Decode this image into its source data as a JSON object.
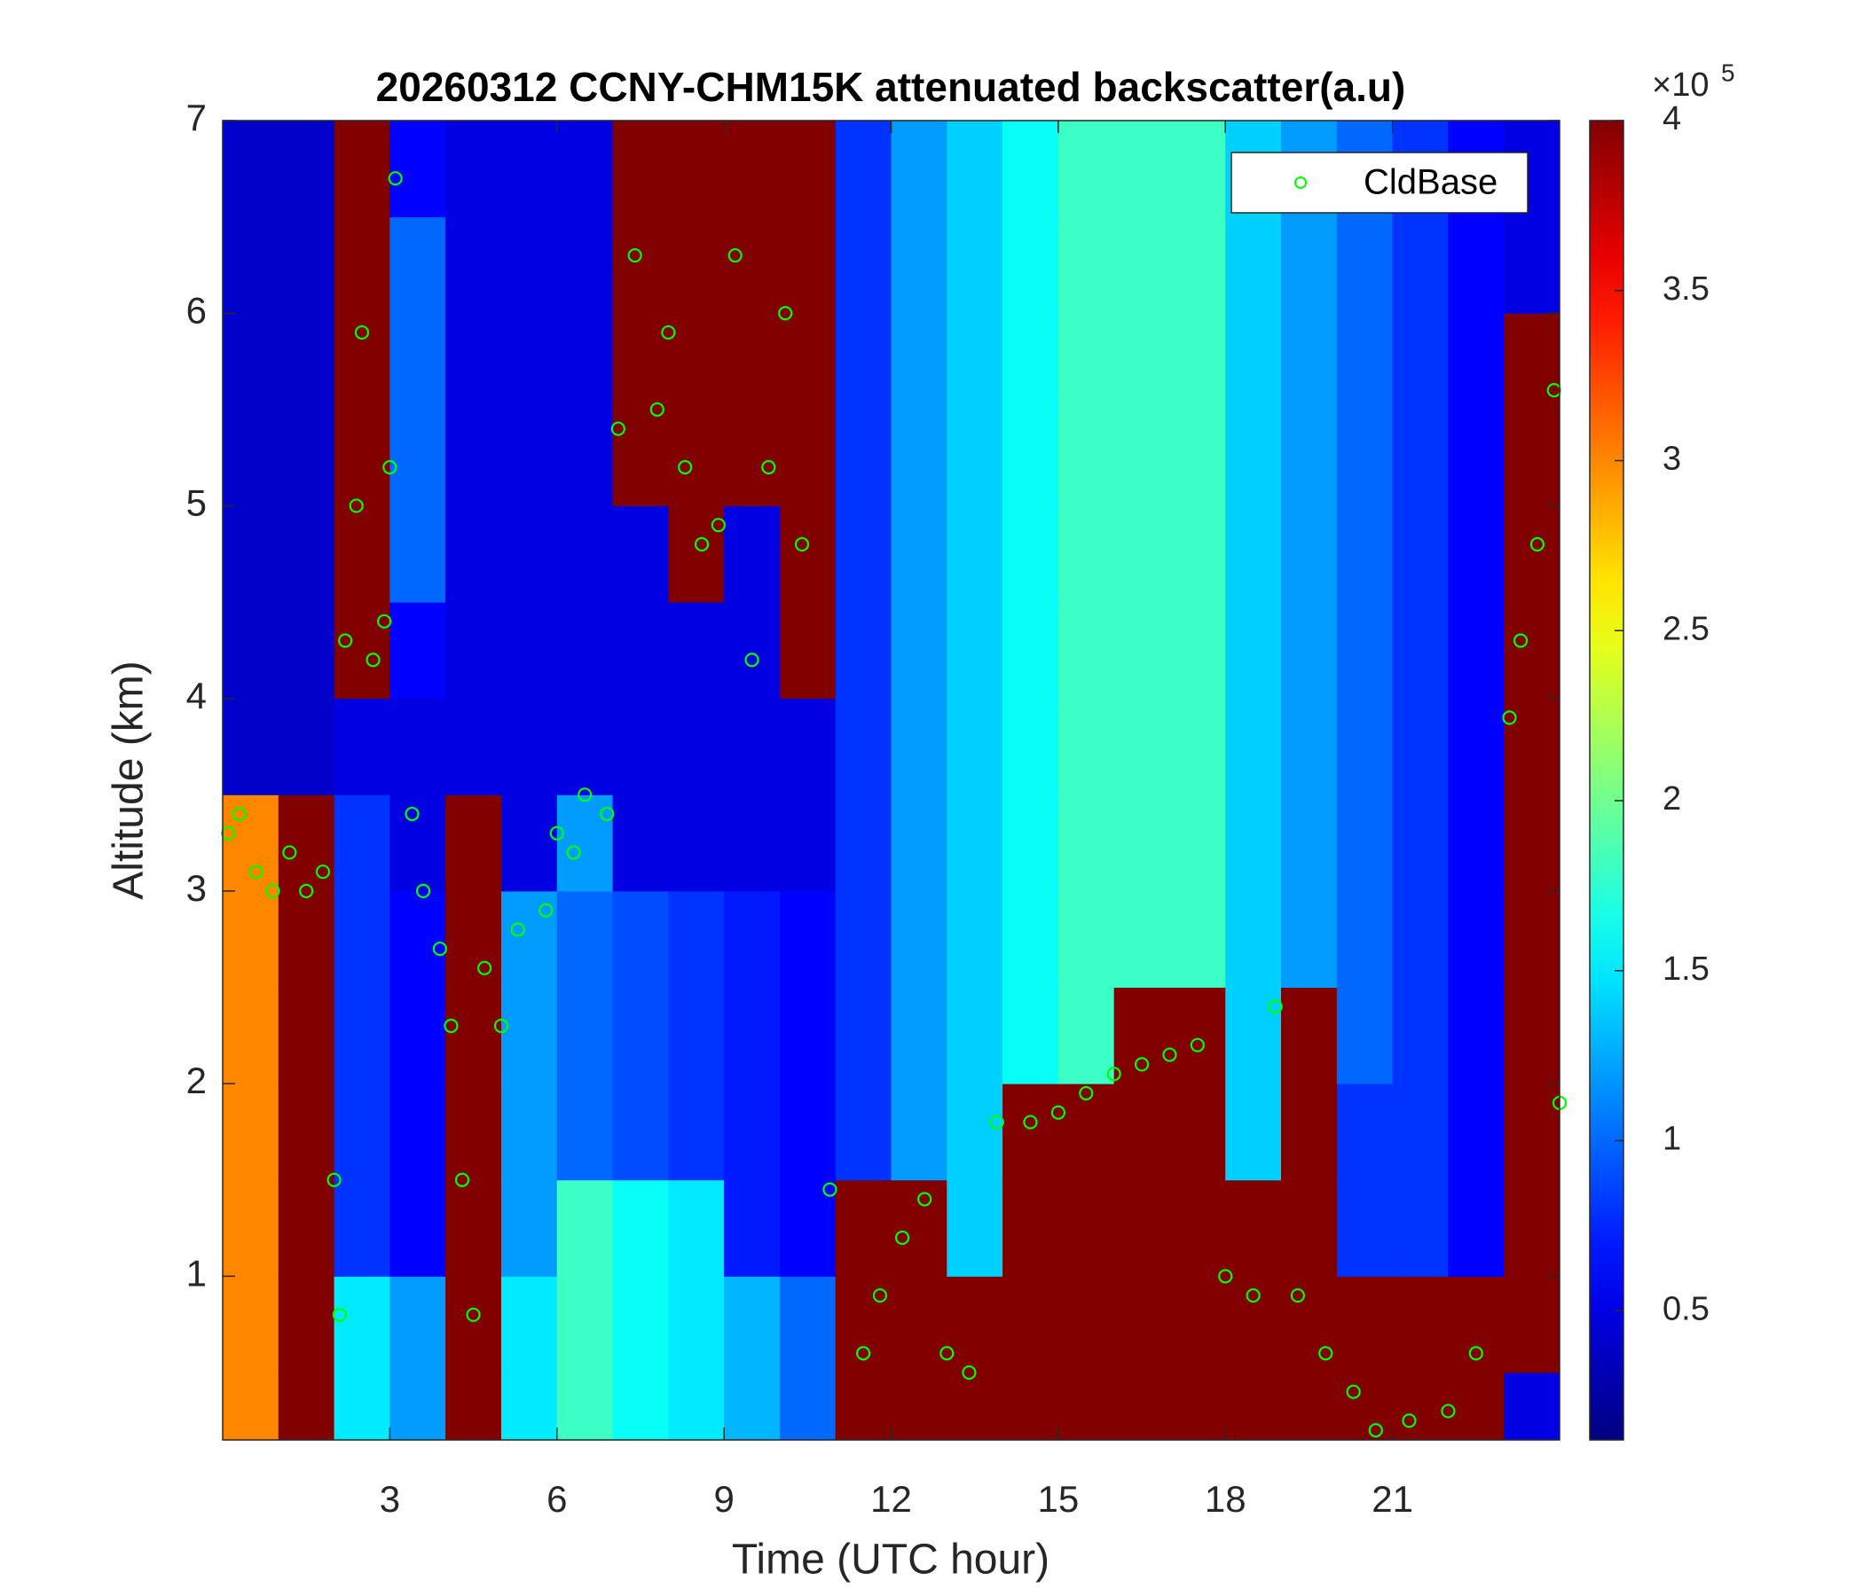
{
  "chart_data": {
    "type": "heatmap",
    "title": "20260312 CCNY-CHM15K attenuated backscatter(a.u)",
    "xlabel": "Time (UTC hour)",
    "ylabel": "Altitude (km)",
    "xlim": [
      0,
      24
    ],
    "ylim": [
      0.15,
      7
    ],
    "xticks": [
      3,
      6,
      9,
      12,
      15,
      18,
      21
    ],
    "yticks": [
      1,
      2,
      3,
      4,
      5,
      6,
      7
    ],
    "colormap": "jet",
    "clim": [
      0.12,
      4
    ],
    "cticks": [
      0.5,
      1,
      1.5,
      2,
      2.5,
      3,
      3.5,
      4
    ],
    "colorbar_multiplier": "×10",
    "colorbar_exponent": "5",
    "legend": "top-right",
    "z_x": [
      0,
      1,
      2,
      3,
      4,
      5,
      6,
      7,
      8,
      9,
      10,
      11,
      12,
      13,
      14,
      15,
      16,
      17,
      18,
      19,
      20,
      21,
      22,
      23,
      24
    ],
    "z_y": [
      0.15,
      0.5,
      1,
      1.5,
      2,
      2.5,
      3,
      3.5,
      4,
      4.5,
      5,
      5.5,
      6,
      6.5,
      7
    ],
    "z": [
      [
        3,
        3,
        3,
        3,
        3,
        3,
        3,
        0.4,
        0.4,
        0.4,
        0.4,
        0.4,
        0.4,
        0.4
      ],
      [
        4,
        4,
        4,
        4,
        4,
        4,
        4,
        0.4,
        0.4,
        0.4,
        0.4,
        0.4,
        0.4,
        0.4
      ],
      [
        1.5,
        1.5,
        0.8,
        0.8,
        0.8,
        0.8,
        0.8,
        0.5,
        4,
        4,
        4,
        4,
        4,
        4
      ],
      [
        1.2,
        1.2,
        0.6,
        0.6,
        0.6,
        0.6,
        0.5,
        0.5,
        0.6,
        1,
        1,
        1,
        1,
        0.6
      ],
      [
        4,
        4,
        4,
        4,
        4,
        4,
        4,
        0.5,
        0.5,
        0.5,
        0.5,
        0.5,
        0.5,
        0.5
      ],
      [
        1.5,
        1.5,
        1.2,
        1.2,
        1.2,
        1.2,
        0.5,
        0.5,
        0.5,
        0.5,
        0.5,
        0.5,
        0.5,
        0.5
      ],
      [
        1.8,
        1.8,
        1.8,
        1,
        1,
        1,
        1.2,
        0.5,
        0.5,
        0.5,
        0.5,
        0.5,
        0.5,
        0.5
      ],
      [
        1.6,
        1.6,
        1.6,
        0.9,
        0.9,
        0.9,
        0.5,
        0.5,
        0.5,
        0.5,
        4,
        4,
        4,
        4
      ],
      [
        1.5,
        1.5,
        1.5,
        0.8,
        0.8,
        0.8,
        0.5,
        0.5,
        0.5,
        4,
        4,
        4,
        4,
        4
      ],
      [
        1.3,
        1.3,
        0.7,
        0.7,
        0.7,
        0.7,
        0.5,
        0.5,
        0.5,
        0.5,
        4,
        4,
        4,
        4
      ],
      [
        1,
        1,
        0.6,
        0.6,
        0.6,
        0.6,
        0.5,
        0.5,
        4,
        4,
        4,
        4,
        4,
        4
      ],
      [
        4,
        4,
        4,
        0.8,
        0.8,
        0.8,
        0.8,
        0.8,
        0.8,
        0.8,
        0.8,
        0.8,
        0.8,
        0.8
      ],
      [
        4,
        4,
        4,
        1.2,
        1.2,
        1.2,
        1.2,
        1.2,
        1.2,
        1.2,
        1.2,
        1.2,
        1.2,
        1.2
      ],
      [
        4,
        4,
        1.4,
        1.4,
        1.4,
        1.4,
        1.4,
        1.4,
        1.4,
        1.4,
        1.4,
        1.4,
        1.4,
        1.4
      ],
      [
        4,
        4,
        4,
        4,
        1.6,
        1.6,
        1.6,
        1.6,
        1.6,
        1.6,
        1.6,
        1.6,
        1.6,
        1.6
      ],
      [
        4,
        4,
        4,
        4,
        1.8,
        1.8,
        1.8,
        1.8,
        1.8,
        1.8,
        1.8,
        1.8,
        1.8,
        1.8
      ],
      [
        4,
        4,
        4,
        4,
        4,
        1.8,
        1.8,
        1.8,
        1.8,
        1.8,
        1.8,
        1.8,
        1.8,
        1.8
      ],
      [
        4,
        4,
        4,
        4,
        4,
        1.8,
        1.8,
        1.8,
        1.8,
        1.8,
        1.8,
        1.8,
        1.8,
        1.8
      ],
      [
        4,
        4,
        4,
        1.4,
        1.4,
        1.4,
        1.4,
        1.4,
        1.4,
        1.4,
        1.4,
        1.4,
        1.4,
        1.4
      ],
      [
        4,
        4,
        4,
        4,
        4,
        1.2,
        1.2,
        1.2,
        1.2,
        1.2,
        1.2,
        1.2,
        1.2,
        1.2
      ],
      [
        4,
        4,
        0.8,
        0.8,
        1,
        1,
        1,
        1,
        1,
        1,
        1,
        1,
        1,
        1
      ],
      [
        4,
        4,
        0.8,
        0.8,
        0.8,
        0.8,
        0.8,
        0.8,
        0.8,
        0.8,
        0.8,
        0.8,
        0.8,
        0.8
      ],
      [
        4,
        4,
        0.6,
        0.6,
        0.6,
        0.6,
        0.6,
        0.6,
        0.6,
        0.6,
        0.6,
        0.6,
        0.6,
        0.6
      ],
      [
        0.5,
        4,
        4,
        4,
        4,
        4,
        4,
        4,
        4,
        4,
        4,
        4,
        0.5,
        0.5
      ]
    ],
    "series": [
      {
        "name": "CldBase",
        "type": "scatter",
        "color": "#00ff00",
        "x": [
          0.1,
          0.3,
          0.6,
          0.9,
          1.2,
          1.5,
          1.8,
          2.0,
          2.1,
          2.2,
          2.4,
          2.5,
          2.7,
          2.9,
          3.0,
          3.1,
          3.4,
          3.6,
          3.9,
          4.1,
          4.3,
          4.5,
          4.7,
          5.0,
          5.3,
          5.8,
          6.0,
          6.3,
          6.5,
          6.9,
          7.1,
          7.4,
          7.8,
          8.0,
          8.3,
          8.6,
          8.9,
          9.2,
          9.5,
          9.8,
          10.1,
          10.4,
          10.9,
          11.5,
          11.8,
          12.2,
          12.6,
          13.0,
          13.4,
          13.9,
          14.5,
          15.0,
          15.5,
          16.0,
          16.5,
          17.0,
          17.5,
          18.0,
          18.5,
          18.9,
          19.3,
          19.8,
          20.3,
          20.7,
          21.3,
          22.0,
          22.5,
          23.1,
          23.3,
          23.6,
          23.9,
          24.0
        ],
        "y": [
          3.3,
          3.4,
          3.1,
          3.0,
          3.2,
          3.0,
          3.1,
          1.5,
          0.8,
          4.3,
          5.0,
          5.9,
          4.2,
          4.4,
          5.2,
          6.7,
          3.4,
          3.0,
          2.7,
          2.3,
          1.5,
          0.8,
          2.6,
          2.3,
          2.8,
          2.9,
          3.3,
          3.2,
          3.5,
          3.4,
          5.4,
          6.3,
          5.5,
          5.9,
          5.2,
          4.8,
          4.9,
          6.3,
          4.2,
          5.2,
          6.0,
          4.8,
          1.45,
          0.6,
          0.9,
          1.2,
          1.4,
          0.6,
          0.5,
          1.8,
          1.8,
          1.85,
          1.95,
          2.05,
          2.1,
          2.15,
          2.2,
          1.0,
          0.9,
          2.4,
          0.9,
          0.6,
          0.4,
          0.2,
          0.25,
          0.3,
          0.6,
          3.9,
          4.3,
          4.8,
          5.6,
          1.9
        ]
      }
    ]
  }
}
